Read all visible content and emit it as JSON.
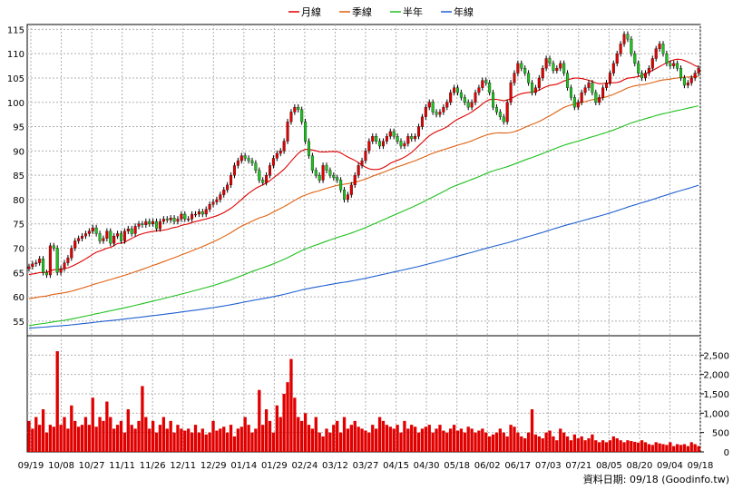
{
  "legend": [
    {
      "label": "月線",
      "color": "#e00000"
    },
    {
      "label": "季線",
      "color": "#e06010"
    },
    {
      "label": "半年",
      "color": "#20c020"
    },
    {
      "label": "年線",
      "color": "#2060d0"
    }
  ],
  "credit": "資料日期: 09/18  (Goodinfo.tw)",
  "chart_data": {
    "type": "candlestick",
    "price_ylim": [
      52,
      116
    ],
    "price_ticks": [
      55,
      60,
      65,
      70,
      75,
      80,
      85,
      90,
      95,
      100,
      105,
      110,
      115
    ],
    "volume_ylim": [
      0,
      3000
    ],
    "volume_ticks": [
      {
        "v": 0,
        "label": "0"
      },
      {
        "v": 500,
        "label": "500"
      },
      {
        "v": 1000,
        "label": "1,000"
      },
      {
        "v": 1500,
        "label": "1,500"
      },
      {
        "v": 2000,
        "label": "2,000"
      },
      {
        "v": 2500,
        "label": "2,500"
      }
    ],
    "x_labels": [
      "09/19",
      "10/08",
      "10/27",
      "11/11",
      "11/26",
      "12/11",
      "12/29",
      "01/14",
      "01/29",
      "02/24",
      "03/12",
      "03/27",
      "04/15",
      "04/30",
      "05/18",
      "06/02",
      "06/17",
      "07/03",
      "07/21",
      "08/05",
      "08/20",
      "09/04",
      "09/18"
    ],
    "up_color": "#e00000",
    "down_color": "#20c020",
    "closes": [
      66.2,
      66.8,
      67.0,
      67.8,
      65.0,
      64.5,
      70.5,
      70.0,
      65.0,
      65.8,
      67.0,
      68.0,
      70.0,
      71.5,
      72.0,
      72.5,
      73.0,
      73.5,
      74.2,
      73.0,
      71.5,
      72.0,
      73.5,
      71.0,
      72.5,
      73.0,
      71.5,
      73.5,
      74.0,
      73.0,
      74.5,
      75.0,
      74.8,
      75.5,
      75.0,
      75.5,
      74.0,
      75.5,
      76.0,
      75.8,
      76.2,
      75.5,
      76.0,
      77.0,
      76.0,
      76.0,
      77.0,
      77.0,
      77.5,
      77.0,
      78.0,
      79.0,
      79.5,
      80.0,
      81.0,
      82.0,
      83.0,
      85.0,
      87.0,
      88.0,
      89.0,
      88.5,
      88.0,
      87.5,
      86.0,
      84.0,
      83.5,
      85.0,
      87.0,
      88.5,
      89.5,
      90.0,
      92.0,
      96.0,
      98.0,
      99.0,
      98.5,
      96.0,
      92.0,
      89.0,
      86.0,
      85.0,
      84.0,
      87.0,
      86.0,
      85.0,
      84.5,
      84.0,
      82.0,
      80.0,
      81.0,
      83.0,
      85.0,
      87.0,
      88.0,
      90.0,
      92.0,
      93.0,
      92.0,
      91.0,
      92.0,
      93.0,
      94.0,
      93.0,
      92.0,
      91.0,
      91.5,
      93.0,
      92.5,
      93.0,
      95.0,
      97.0,
      99.0,
      100.0,
      98.0,
      97.5,
      98.0,
      99.0,
      100.0,
      102.0,
      103.0,
      102.0,
      101.0,
      100.0,
      99.0,
      100.0,
      102.0,
      103.0,
      104.5,
      104.0,
      102.0,
      99.0,
      98.0,
      97.0,
      96.0,
      100.0,
      104.0,
      106.0,
      108.0,
      107.0,
      106.0,
      104.0,
      102.0,
      103.0,
      105.0,
      107.0,
      109.0,
      108.0,
      106.5,
      107.0,
      108.0,
      106.0,
      103.0,
      101.0,
      99.0,
      100.0,
      102.0,
      103.0,
      104.0,
      102.0,
      100.0,
      101.0,
      103.0,
      104.0,
      106.0,
      108.0,
      110.0,
      112.0,
      114.0,
      113.0,
      110.0,
      108.0,
      106.0,
      105.0,
      106.0,
      107.0,
      109.0,
      111.0,
      112.0,
      110.0,
      108.0,
      107.5,
      108.0,
      107.0,
      105.0,
      103.5,
      104.0,
      105.0,
      106.0,
      107.0
    ],
    "volumes": [
      800,
      600,
      900,
      700,
      1100,
      500,
      700,
      650,
      2600,
      700,
      900,
      600,
      1200,
      800,
      650,
      700,
      900,
      700,
      1400,
      650,
      900,
      800,
      1300,
      900,
      600,
      700,
      800,
      500,
      1100,
      700,
      600,
      800,
      1700,
      900,
      600,
      800,
      500,
      700,
      900,
      600,
      800,
      500,
      700,
      600,
      550,
      600,
      500,
      700,
      500,
      600,
      450,
      500,
      800,
      550,
      600,
      650,
      500,
      700,
      400,
      600,
      650,
      900,
      700,
      500,
      600,
      1600,
      700,
      1100,
      800,
      500,
      1200,
      900,
      1500,
      1800,
      2400,
      1400,
      900,
      800,
      1000,
      700,
      600,
      900,
      500,
      400,
      600,
      500,
      700,
      800,
      500,
      900,
      600,
      700,
      800,
      650,
      600,
      550,
      500,
      700,
      600,
      900,
      800,
      700,
      650,
      600,
      700,
      500,
      800,
      600,
      700,
      650,
      500,
      600,
      650,
      700,
      500,
      600,
      700,
      550,
      500,
      600,
      700,
      550,
      600,
      500,
      650,
      600,
      500,
      550,
      600,
      500,
      400,
      450,
      500,
      600,
      500,
      400,
      700,
      650,
      500,
      400,
      350,
      500,
      1100,
      450,
      400,
      350,
      500,
      550,
      400,
      300,
      600,
      500,
      400,
      300,
      450,
      350,
      400,
      300,
      350,
      450,
      300,
      250,
      300,
      250,
      300,
      400,
      350,
      300,
      250,
      300,
      280,
      260,
      240,
      300,
      250,
      200,
      180,
      250,
      220,
      200,
      180,
      250,
      150,
      200,
      180,
      200,
      150,
      250,
      200,
      150,
      180,
      150,
      250,
      180,
      120
    ]
  }
}
